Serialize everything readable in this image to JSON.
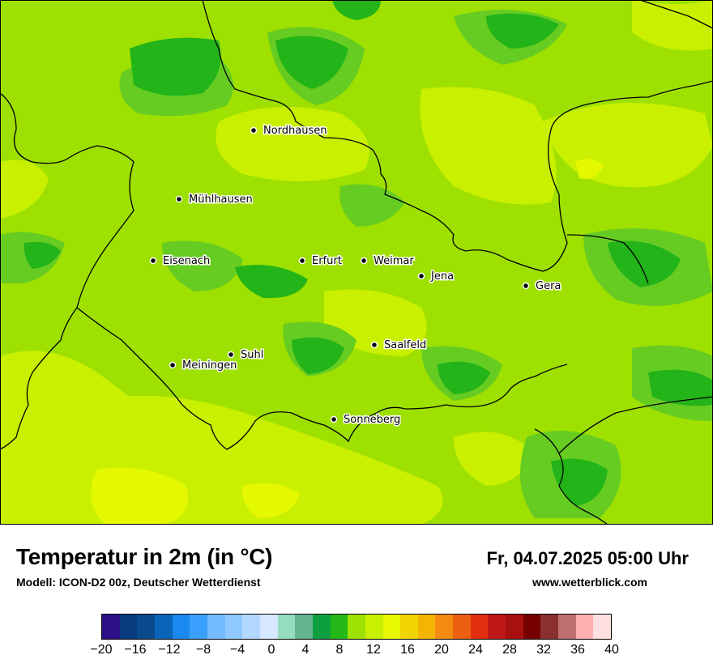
{
  "map": {
    "title": "Temperatur in 2m (in °C)",
    "model": "Modell: ICON-D2 00z, Deutscher Wetterdienst",
    "datetime": "Fr, 04.07.2025 05:00 Uhr",
    "website": "www.wetterblick.com",
    "cities": [
      {
        "name": "Nordhausen",
        "label": "Nordhausen"
      },
      {
        "name": "Mühlhausen",
        "label": "Mühlhausen"
      },
      {
        "name": "Eisenach",
        "label": "Eisenach"
      },
      {
        "name": "Erfurt",
        "label": "Erfurt"
      },
      {
        "name": "Weimar",
        "label": "Weimar"
      },
      {
        "name": "Jena",
        "label": "Jena"
      },
      {
        "name": "Gera",
        "label": "Gera"
      },
      {
        "name": "Saalfeld",
        "label": "Saalfeld"
      },
      {
        "name": "Suhl",
        "label": "Suhl"
      },
      {
        "name": "Meiningen",
        "label": "Meiningen"
      },
      {
        "name": "Sonneberg",
        "label": "Sonneberg"
      }
    ],
    "colors": {
      "base_field": "#9ee000",
      "warm_field": "#c8f000",
      "warmest_field": "#e4f800",
      "cool_field": "#66cc22",
      "cooler_field": "#22aa22",
      "border": "#000000"
    }
  },
  "colorbar": {
    "colors": [
      "#2e0f8a",
      "#083c7e",
      "#0a4a8c",
      "#0a65b8",
      "#1a88ee",
      "#3aa0ff",
      "#74baff",
      "#8ec8ff",
      "#b2d8ff",
      "#d6e8ff",
      "#96dcc0",
      "#64b490",
      "#0ea040",
      "#24b818",
      "#9ee000",
      "#c8f000",
      "#e8f800",
      "#f2d400",
      "#f4b400",
      "#f48a10",
      "#ec6010",
      "#e03010",
      "#be1818",
      "#a81010",
      "#780000",
      "#8a3030",
      "#c07070",
      "#ffb0b0",
      "#ffe0e0"
    ],
    "tick_labels": [
      "−20",
      "−16",
      "−12",
      "−8",
      "−4",
      "0",
      "4",
      "8",
      "12",
      "16",
      "20",
      "24",
      "28",
      "32",
      "36",
      "40"
    ]
  }
}
